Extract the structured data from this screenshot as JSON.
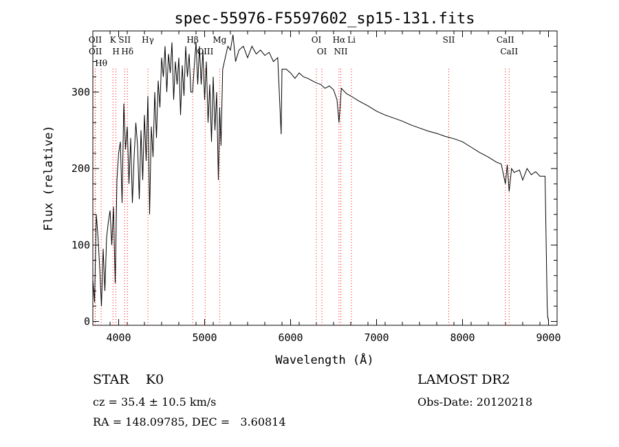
{
  "chart_data": {
    "type": "line",
    "title": "spec-55976-F5597602_sp15-131.fits",
    "xlabel": "Wavelength (Å)",
    "ylabel": "Flux (relative)",
    "xlim": [
      3700,
      9100
    ],
    "ylim": [
      -5,
      380
    ],
    "xticks": [
      4000,
      5000,
      6000,
      7000,
      8000,
      9000
    ],
    "yticks": [
      0,
      100,
      200,
      300
    ],
    "grid": false,
    "line_color": "#000000",
    "marker_color": "#ff0000",
    "series": [
      {
        "x": [
          3700,
          3720,
          3740,
          3760,
          3780,
          3800,
          3820,
          3840,
          3860,
          3880,
          3900,
          3920,
          3940,
          3960,
          3980,
          4000,
          4020,
          4040,
          4060,
          4080,
          4100,
          4120,
          4140,
          4160,
          4180,
          4200,
          4220,
          4240,
          4260,
          4280,
          4300,
          4320,
          4340,
          4360,
          4380,
          4400,
          4420,
          4440,
          4460,
          4480,
          4500,
          4520,
          4540,
          4560,
          4580,
          4600,
          4620,
          4640,
          4660,
          4680,
          4700,
          4720,
          4740,
          4760,
          4780,
          4800,
          4820,
          4840,
          4861,
          4880,
          4900,
          4920,
          4940,
          4960,
          4980,
          5000,
          5020,
          5040,
          5060,
          5080,
          5100,
          5120,
          5140,
          5160,
          5175,
          5190,
          5210,
          5240,
          5270,
          5300,
          5330,
          5360,
          5400,
          5450,
          5500,
          5550,
          5600,
          5650,
          5700,
          5750,
          5800,
          5850,
          5890,
          5900,
          5950,
          6000,
          6050,
          6100,
          6150,
          6200,
          6250,
          6300,
          6350,
          6400,
          6450,
          6500,
          6540,
          6563,
          6590,
          6650,
          6700,
          6800,
          6900,
          7000,
          7100,
          7200,
          7300,
          7400,
          7500,
          7600,
          7700,
          7800,
          7900,
          8000,
          8100,
          8200,
          8300,
          8400,
          8450,
          8498,
          8520,
          8542,
          8570,
          8600,
          8662,
          8700,
          8750,
          8800,
          8850,
          8900,
          8960,
          8985,
          8990,
          8995,
          9000
        ],
        "y": [
          55,
          25,
          140,
          110,
          70,
          20,
          95,
          40,
          110,
          130,
          145,
          100,
          150,
          50,
          185,
          220,
          235,
          155,
          285,
          225,
          255,
          180,
          240,
          155,
          215,
          260,
          230,
          160,
          250,
          185,
          270,
          210,
          295,
          140,
          255,
          215,
          300,
          240,
          315,
          280,
          345,
          320,
          360,
          300,
          350,
          325,
          365,
          290,
          340,
          310,
          345,
          270,
          335,
          295,
          360,
          320,
          350,
          300,
          300,
          335,
          365,
          310,
          360,
          310,
          355,
          290,
          340,
          260,
          310,
          235,
          320,
          250,
          300,
          185,
          280,
          230,
          330,
          345,
          360,
          355,
          375,
          340,
          355,
          360,
          345,
          360,
          350,
          355,
          348,
          352,
          340,
          345,
          245,
          330,
          330,
          325,
          318,
          325,
          320,
          318,
          315,
          312,
          310,
          305,
          308,
          303,
          290,
          260,
          305,
          298,
          295,
          288,
          282,
          275,
          270,
          266,
          262,
          257,
          253,
          249,
          246,
          242,
          239,
          235,
          228,
          221,
          215,
          208,
          206,
          180,
          205,
          170,
          200,
          195,
          198,
          185,
          200,
          192,
          196,
          190,
          190,
          20,
          5,
          5,
          0
        ]
      }
    ],
    "lines": [
      {
        "label": "Hθ",
        "x": 3797
      },
      {
        "label": "OII",
        "x": 3727
      },
      {
        "label": "OII",
        "x": 3729
      },
      {
        "label": "H",
        "x": 3969
      },
      {
        "label": "K",
        "x": 3934
      },
      {
        "label": "SII",
        "x": 4070
      },
      {
        "label": "Hδ",
        "x": 4102
      },
      {
        "label": "Hγ",
        "x": 4340
      },
      {
        "label": "Hβ",
        "x": 4861
      },
      {
        "label": "OIII",
        "x": 5007
      },
      {
        "label": "Mg",
        "x": 5175
      },
      {
        "label": "OI",
        "x": 6300
      },
      {
        "label": "OI",
        "x": 6364
      },
      {
        "label": "Hα",
        "x": 6563
      },
      {
        "label": "NII",
        "x": 6584
      },
      {
        "label": "Li",
        "x": 6708
      },
      {
        "label": "SII",
        "x": 7840
      },
      {
        "label": "CaII",
        "x": 8498
      },
      {
        "label": "CaII",
        "x": 8542
      }
    ]
  },
  "info": {
    "class_line": "STAR    K0",
    "survey": "LAMOST DR2",
    "cz_line": "cz = 35.4 ± 10.5 km/s",
    "obs_date": "Obs-Date: 20120218",
    "coords": "RA = 148.09785, DEC =   3.60814"
  }
}
